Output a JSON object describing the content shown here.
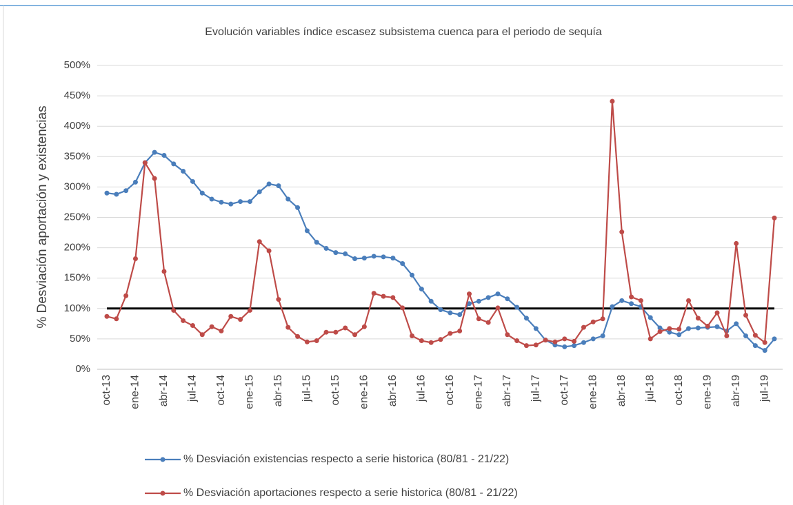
{
  "chart_data": {
    "type": "line",
    "title": "Evolución variables índice escasez subsistema cuenca para el periodo de sequía",
    "y_label": "% Desviación aportación y existencias",
    "categories": [
      "oct-13",
      null,
      null,
      "ene-14",
      null,
      null,
      "abr-14",
      null,
      null,
      "jul-14",
      null,
      null,
      "oct-14",
      null,
      null,
      "ene-15",
      null,
      null,
      "abr-15",
      null,
      null,
      "jul-15",
      null,
      null,
      "oct-15",
      null,
      null,
      "ene-16",
      null,
      null,
      "abr-16",
      null,
      null,
      "jul-16",
      null,
      null,
      "oct-16",
      null,
      null,
      "ene-17",
      null,
      null,
      "abr-17",
      null,
      null,
      "jul-17",
      null,
      null,
      "oct-17",
      null,
      null,
      "ene-18",
      null,
      null,
      "abr-18",
      null,
      null,
      "jul-18",
      null,
      null,
      "oct-18",
      null,
      null,
      "ene-19",
      null,
      null,
      "abr-19",
      null,
      null,
      "jul-19",
      null
    ],
    "series": [
      {
        "name": "% Desviación existencias respecto a serie historica (80/81 - 21/22)",
        "color": "#4a7ebb",
        "values": [
          290,
          288,
          294,
          308,
          340,
          357,
          352,
          338,
          326,
          309,
          290,
          280,
          275,
          272,
          276,
          276,
          292,
          305,
          302,
          280,
          266,
          228,
          209,
          199,
          192,
          190,
          182,
          183,
          186,
          185,
          183,
          174,
          155,
          132,
          112,
          98,
          93,
          90,
          108,
          112,
          118,
          124,
          116,
          102,
          84,
          67,
          48,
          40,
          37,
          39,
          44,
          50,
          55,
          103,
          113,
          108,
          103,
          85,
          68,
          61,
          57,
          67,
          68,
          69,
          70,
          63,
          75,
          55,
          39,
          31,
          50
        ]
      },
      {
        "name": "% Desviación aportaciones respecto a serie historica (80/81 - 21/22)",
        "color": "#be4b48",
        "values": [
          87,
          83,
          121,
          182,
          340,
          314,
          161,
          97,
          80,
          72,
          57,
          70,
          63,
          87,
          82,
          97,
          210,
          195,
          115,
          69,
          54,
          45,
          47,
          61,
          61,
          68,
          57,
          70,
          125,
          120,
          118,
          101,
          55,
          47,
          44,
          49,
          59,
          63,
          124,
          83,
          77,
          101,
          57,
          47,
          39,
          40,
          48,
          45,
          50,
          46,
          69,
          78,
          83,
          441,
          226,
          119,
          113,
          50,
          62,
          67,
          66,
          113,
          84,
          71,
          93,
          55,
          207,
          89,
          56,
          44,
          249
        ]
      }
    ],
    "reference_line": 100,
    "reference_color": "#000000",
    "ylim": [
      0,
      500
    ],
    "yticks": [
      {
        "value": 0,
        "label": "0%"
      },
      {
        "value": 50,
        "label": "50%"
      },
      {
        "value": 100,
        "label": "100%"
      },
      {
        "value": 150,
        "label": "150%"
      },
      {
        "value": 200,
        "label": "200%"
      },
      {
        "value": 250,
        "label": "250%"
      },
      {
        "value": 300,
        "label": "300%"
      },
      {
        "value": 350,
        "label": "350%"
      },
      {
        "value": 400,
        "label": "400%"
      },
      {
        "value": 450,
        "label": "450%"
      },
      {
        "value": 500,
        "label": "500%"
      }
    ],
    "grid": true
  }
}
